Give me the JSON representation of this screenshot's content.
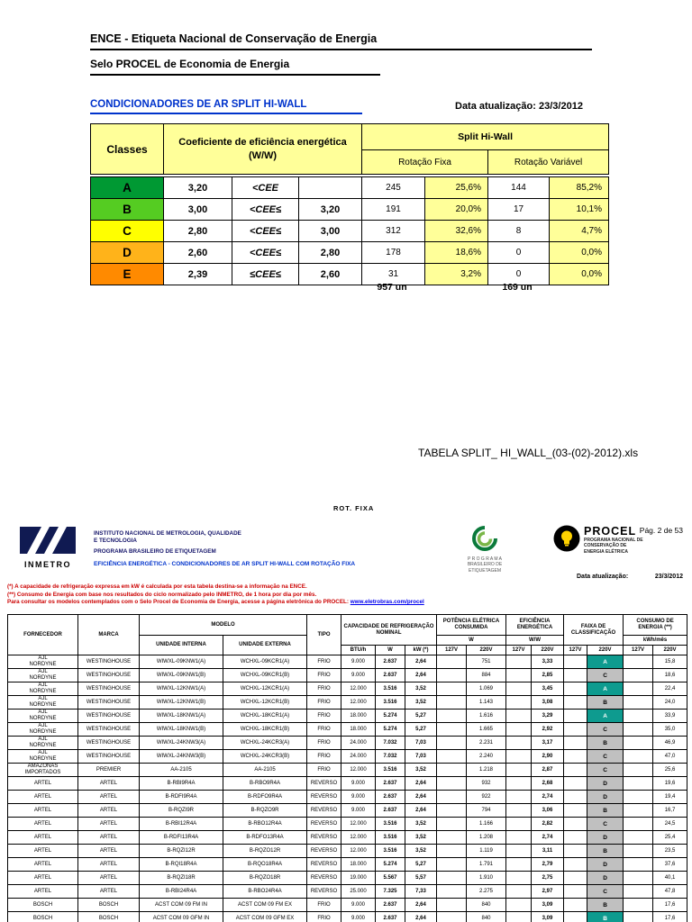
{
  "doc": {
    "heading1": "ENCE - Etiqueta Nacional de Conservação de Energia",
    "heading2": "Selo PROCEL de Economia de Energia",
    "section_title": "CONDICIONADORES DE AR SPLIT HI-WALL",
    "update_label": "Data atualização:",
    "update_date": "23/3/2012",
    "filename_note": "TABELA SPLIT_ HI_WALL_(03-(02)-2012).xls"
  },
  "classes_table": {
    "header": {
      "classes": "Classes",
      "coeficiente": "Coeficiente de eficiência energética (W/W)",
      "split": "Split Hi-Wall",
      "rotacao_fixa": "Rotação Fixa",
      "rotacao_variavel": "Rotação Variável"
    },
    "rows": [
      {
        "letter": "A",
        "color": "#009933",
        "c1": "3,20",
        "op": "<CEE",
        "c2": "",
        "fixa_n": "245",
        "fixa_p": "25,6%",
        "var_n": "144",
        "var_p": "85,2%"
      },
      {
        "letter": "B",
        "color": "#55CC22",
        "c1": "3,00",
        "op": "<CEE≤",
        "c2": "3,20",
        "fixa_n": "191",
        "fixa_p": "20,0%",
        "var_n": "17",
        "var_p": "10,1%"
      },
      {
        "letter": "C",
        "color": "#FFFF00",
        "c1": "2,80",
        "op": "<CEE≤",
        "c2": "3,00",
        "fixa_n": "312",
        "fixa_p": "32,6%",
        "var_n": "8",
        "var_p": "4,7%"
      },
      {
        "letter": "D",
        "color": "#FFB31A",
        "c1": "2,60",
        "op": "<CEE≤",
        "c2": "2,80",
        "fixa_n": "178",
        "fixa_p": "18,6%",
        "var_n": "0",
        "var_p": "0,0%"
      },
      {
        "letter": "E",
        "color": "#FF8A00",
        "c1": "2,39",
        "op": "≤CEE≤",
        "c2": "2,60",
        "fixa_n": "31",
        "fixa_p": "3,2%",
        "var_n": "0",
        "var_p": "0,0%"
      }
    ],
    "totals": {
      "fixa": "957 un",
      "variavel": "169 un"
    }
  },
  "page2": {
    "rot_label": "ROT.  FIXA",
    "page_number": "Pág. 2 de 53",
    "inmetro_label": "INMETRO",
    "institute_line1": "INSTITUTO NACIONAL DE METROLOGIA, QUALIDADE",
    "institute_line2": "E TECNOLOGIA",
    "institute_line3": "PROGRAMA BRASILEIRO DE ETIQUETAGEM",
    "table_title": "EFICIÊNCIA ENERGÉTICA - CONDICIONADORES DE AR SPLIT HI-WALL COM ROTAÇÃO FIXA",
    "pbe_lines": [
      "P R O G R A M A",
      "BRASILEIRO DE",
      "ETIQUETAGEM"
    ],
    "procel_name": "PROCEL",
    "procel_sub1": "PROGRAMA NACIONAL DE",
    "procel_sub2": "CONSERVAÇÃO DE",
    "procel_sub3": "ENERGIA ELÉTRICA",
    "update_label": "Data atualização:",
    "update_date": "23/3/2012",
    "footnote1": "(*) A capacidade de refrigeração expressa em kW é calculada por esta tabela destina-se a informação na ENCE.",
    "footnote2": "(**) Consumo de Energia com base nos resultados do ciclo normalizado pelo INMETRO, de 1 hora por dia por mês.",
    "footnote3": "Para consultar os modelos contemplados com o Selo Procel de Economia de Energia, acesse a página eletrônica do PROCEL: ",
    "footnote3_link": "www.eletrobras.com/procel"
  },
  "colors": {
    "faixa_highlight": "#0E9B8F",
    "faixa_normal": "#C0C0C0",
    "header_yellow": "#FFFF99"
  },
  "main_table": {
    "headers": {
      "fornecedor": "FORNECEDOR",
      "marca": "MARCA",
      "modelo": "MODELO",
      "unidade_interna": "UNIDADE INTERNA",
      "unidade_externa": "UNIDADE EXTERNA",
      "tipo": "TIPO",
      "capacidade": "CAPACIDADE DE REFRIGERAÇÃO NOMINAL",
      "btu": "BTU/h",
      "w": "W",
      "kw": "kW (*)",
      "potencia": "POTÊNCIA ELÉTRICA CONSUMIDA",
      "potencia_unit": "W",
      "eficiencia": "EFICIÊNCIA ENERGÉTICA",
      "eficiencia_unit": "W/W",
      "faixa": "FAIXA DE CLASSIFICAÇÃO",
      "consumo": "CONSUMO DE ENERGIA (**)",
      "consumo_unit": "kWh/mês",
      "v127": "127V",
      "v220": "220V"
    },
    "rows": [
      {
        "fornecedor": "AJL\nNORDYNE",
        "marca": "WESTINGHOUSE",
        "interna": "WIWXL-09KNW1(A)",
        "externa": "WCHXL-09KCR1(A)",
        "tipo": "FRIO",
        "btu": "9.000",
        "w": "2.637",
        "kw": "2,64",
        "pot127": "",
        "pot220": "751",
        "ef127": "",
        "ef220": "3,33",
        "fx127": "",
        "fx220": "A",
        "hl": true,
        "cons127": "",
        "cons220": "15,8"
      },
      {
        "fornecedor": "AJL\nNORDYNE",
        "marca": "WESTINGHOUSE",
        "interna": "WIWXL-09KNW1(B)",
        "externa": "WCHXL-09KCR1(B)",
        "tipo": "FRIO",
        "btu": "9.000",
        "w": "2.637",
        "kw": "2,64",
        "pot127": "",
        "pot220": "884",
        "ef127": "",
        "ef220": "2,85",
        "fx127": "",
        "fx220": "C",
        "hl": false,
        "cons127": "",
        "cons220": "18,6"
      },
      {
        "fornecedor": "AJL\nNORDYNE",
        "marca": "WESTINGHOUSE",
        "interna": "WIWXL-12KNW1(A)",
        "externa": "WCHXL-12KCR1(A)",
        "tipo": "FRIO",
        "btu": "12.000",
        "w": "3.516",
        "kw": "3,52",
        "pot127": "",
        "pot220": "1.069",
        "ef127": "",
        "ef220": "3,45",
        "fx127": "",
        "fx220": "A",
        "hl": true,
        "cons127": "",
        "cons220": "22,4"
      },
      {
        "fornecedor": "AJL\nNORDYNE",
        "marca": "WESTINGHOUSE",
        "interna": "WIWXL-12KNW1(B)",
        "externa": "WCHXL-12KCR1(B)",
        "tipo": "FRIO",
        "btu": "12.000",
        "w": "3.516",
        "kw": "3,52",
        "pot127": "",
        "pot220": "1.143",
        "ef127": "",
        "ef220": "3,08",
        "fx127": "",
        "fx220": "B",
        "hl": false,
        "cons127": "",
        "cons220": "24,0"
      },
      {
        "fornecedor": "AJL\nNORDYNE",
        "marca": "WESTINGHOUSE",
        "interna": "WIWXL-18KNW1(A)",
        "externa": "WCHXL-18KCR1(A)",
        "tipo": "FRIO",
        "btu": "18.000",
        "w": "5.274",
        "kw": "5,27",
        "pot127": "",
        "pot220": "1.616",
        "ef127": "",
        "ef220": "3,29",
        "fx127": "",
        "fx220": "A",
        "hl": true,
        "cons127": "",
        "cons220": "33,9"
      },
      {
        "fornecedor": "AJL\nNORDYNE",
        "marca": "WESTINGHOUSE",
        "interna": "WIWXL-18KNW1(B)",
        "externa": "WCHXL-18KCR1(B)",
        "tipo": "FRIO",
        "btu": "18.000",
        "w": "5.274",
        "kw": "5,27",
        "pot127": "",
        "pot220": "1.665",
        "ef127": "",
        "ef220": "2,92",
        "fx127": "",
        "fx220": "C",
        "hl": false,
        "cons127": "",
        "cons220": "35,0"
      },
      {
        "fornecedor": "AJL\nNORDYNE",
        "marca": "WESTINGHOUSE",
        "interna": "WIWXL-24KNW3(A)",
        "externa": "WCHXL-24KCR3(A)",
        "tipo": "FRIO",
        "btu": "24.000",
        "w": "7.032",
        "kw": "7,03",
        "pot127": "",
        "pot220": "2.231",
        "ef127": "",
        "ef220": "3,17",
        "fx127": "",
        "fx220": "B",
        "hl": false,
        "cons127": "",
        "cons220": "46,9"
      },
      {
        "fornecedor": "AJL\nNORDYNE",
        "marca": "WESTINGHOUSE",
        "interna": "WIWXL-24KNW3(B)",
        "externa": "WCHXL-24KCR3(B)",
        "tipo": "FRIO",
        "btu": "24.000",
        "w": "7.032",
        "kw": "7,03",
        "pot127": "",
        "pot220": "2.240",
        "ef127": "",
        "ef220": "2,90",
        "fx127": "",
        "fx220": "C",
        "hl": false,
        "cons127": "",
        "cons220": "47,0"
      },
      {
        "fornecedor": "AMAZONAS IMPORTADOS",
        "marca": "PREMIER",
        "interna": "AA-2105",
        "externa": "AA-2105",
        "tipo": "FRIO",
        "btu": "12.000",
        "w": "3.516",
        "kw": "3,52",
        "pot127": "",
        "pot220": "1.218",
        "ef127": "",
        "ef220": "2,87",
        "fx127": "",
        "fx220": "C",
        "hl": false,
        "cons127": "",
        "cons220": "25,6"
      },
      {
        "fornecedor": "ARTEL",
        "marca": "ARTEL",
        "interna": "B-RBI9R4A",
        "externa": "B-RBO9R4A",
        "tipo": "REVERSO",
        "btu": "9.000",
        "w": "2.637",
        "kw": "2,64",
        "pot127": "",
        "pot220": "932",
        "ef127": "",
        "ef220": "2,68",
        "fx127": "",
        "fx220": "D",
        "hl": false,
        "cons127": "",
        "cons220": "19,6"
      },
      {
        "fornecedor": "ARTEL",
        "marca": "ARTEL",
        "interna": "B-RDFI9R4A",
        "externa": "B-RDFO9R4A",
        "tipo": "REVERSO",
        "btu": "9.000",
        "w": "2.637",
        "kw": "2,64",
        "pot127": "",
        "pot220": "922",
        "ef127": "",
        "ef220": "2,74",
        "fx127": "",
        "fx220": "D",
        "hl": false,
        "cons127": "",
        "cons220": "19,4"
      },
      {
        "fornecedor": "ARTEL",
        "marca": "ARTEL",
        "interna": "B-RQZI9R",
        "externa": "B-RQZO9R",
        "tipo": "REVERSO",
        "btu": "9.000",
        "w": "2.637",
        "kw": "2,64",
        "pot127": "",
        "pot220": "794",
        "ef127": "",
        "ef220": "3,06",
        "fx127": "",
        "fx220": "B",
        "hl": false,
        "cons127": "",
        "cons220": "16,7"
      },
      {
        "fornecedor": "ARTEL",
        "marca": "ARTEL",
        "interna": "B-RBI12R4A",
        "externa": "B-RBO12R4A",
        "tipo": "REVERSO",
        "btu": "12.000",
        "w": "3.516",
        "kw": "3,52",
        "pot127": "",
        "pot220": "1.166",
        "ef127": "",
        "ef220": "2,82",
        "fx127": "",
        "fx220": "C",
        "hl": false,
        "cons127": "",
        "cons220": "24,5"
      },
      {
        "fornecedor": "ARTEL",
        "marca": "ARTEL",
        "interna": "B-RDFI13R4A",
        "externa": "B-RDFO13R4A",
        "tipo": "REVERSO",
        "btu": "12.000",
        "w": "3.516",
        "kw": "3,52",
        "pot127": "",
        "pot220": "1.208",
        "ef127": "",
        "ef220": "2,74",
        "fx127": "",
        "fx220": "D",
        "hl": false,
        "cons127": "",
        "cons220": "25,4"
      },
      {
        "fornecedor": "ARTEL",
        "marca": "ARTEL",
        "interna": "B-RQZI12R",
        "externa": "B-RQZO12R",
        "tipo": "REVERSO",
        "btu": "12.000",
        "w": "3.516",
        "kw": "3,52",
        "pot127": "",
        "pot220": "1.119",
        "ef127": "",
        "ef220": "3,11",
        "fx127": "",
        "fx220": "B",
        "hl": false,
        "cons127": "",
        "cons220": "23,5"
      },
      {
        "fornecedor": "ARTEL",
        "marca": "ARTEL",
        "interna": "B-RQI18R4A",
        "externa": "B-RQO18R4A",
        "tipo": "REVERSO",
        "btu": "18.000",
        "w": "5.274",
        "kw": "5,27",
        "pot127": "",
        "pot220": "1.791",
        "ef127": "",
        "ef220": "2,79",
        "fx127": "",
        "fx220": "D",
        "hl": false,
        "cons127": "",
        "cons220": "37,6"
      },
      {
        "fornecedor": "ARTEL",
        "marca": "ARTEL",
        "interna": "B-RQZI18R",
        "externa": "B-RQZO18R",
        "tipo": "REVERSO",
        "btu": "19.000",
        "w": "5.567",
        "kw": "5,57",
        "pot127": "",
        "pot220": "1.910",
        "ef127": "",
        "ef220": "2,75",
        "fx127": "",
        "fx220": "D",
        "hl": false,
        "cons127": "",
        "cons220": "40,1"
      },
      {
        "fornecedor": "ARTEL",
        "marca": "ARTEL",
        "interna": "B-RBI24R4A",
        "externa": "B-RBO24R4A",
        "tipo": "REVERSO",
        "btu": "25.000",
        "w": "7.325",
        "kw": "7,33",
        "pot127": "",
        "pot220": "2.275",
        "ef127": "",
        "ef220": "2,97",
        "fx127": "",
        "fx220": "C",
        "hl": false,
        "cons127": "",
        "cons220": "47,8"
      },
      {
        "fornecedor": "BOSCH",
        "marca": "BOSCH",
        "interna": "ACST COM 09 FM IN",
        "externa": "ACST COM 09 FM EX",
        "tipo": "FRIO",
        "btu": "9.000",
        "w": "2.637",
        "kw": "2,64",
        "pot127": "",
        "pot220": "840",
        "ef127": "",
        "ef220": "3,09",
        "fx127": "",
        "fx220": "B",
        "hl": false,
        "cons127": "",
        "cons220": "17,6"
      },
      {
        "fornecedor": "BOSCH",
        "marca": "BOSCH",
        "interna": "ACST COM 09 GFM IN",
        "externa": "ACST COM 09 GFM EX",
        "tipo": "FRIO",
        "btu": "9.000",
        "w": "2.637",
        "kw": "2,64",
        "pot127": "",
        "pot220": "840",
        "ef127": "",
        "ef220": "3,09",
        "fx127": "",
        "fx220": "B",
        "hl": true,
        "cons127": "",
        "cons220": "17,6"
      }
    ]
  }
}
